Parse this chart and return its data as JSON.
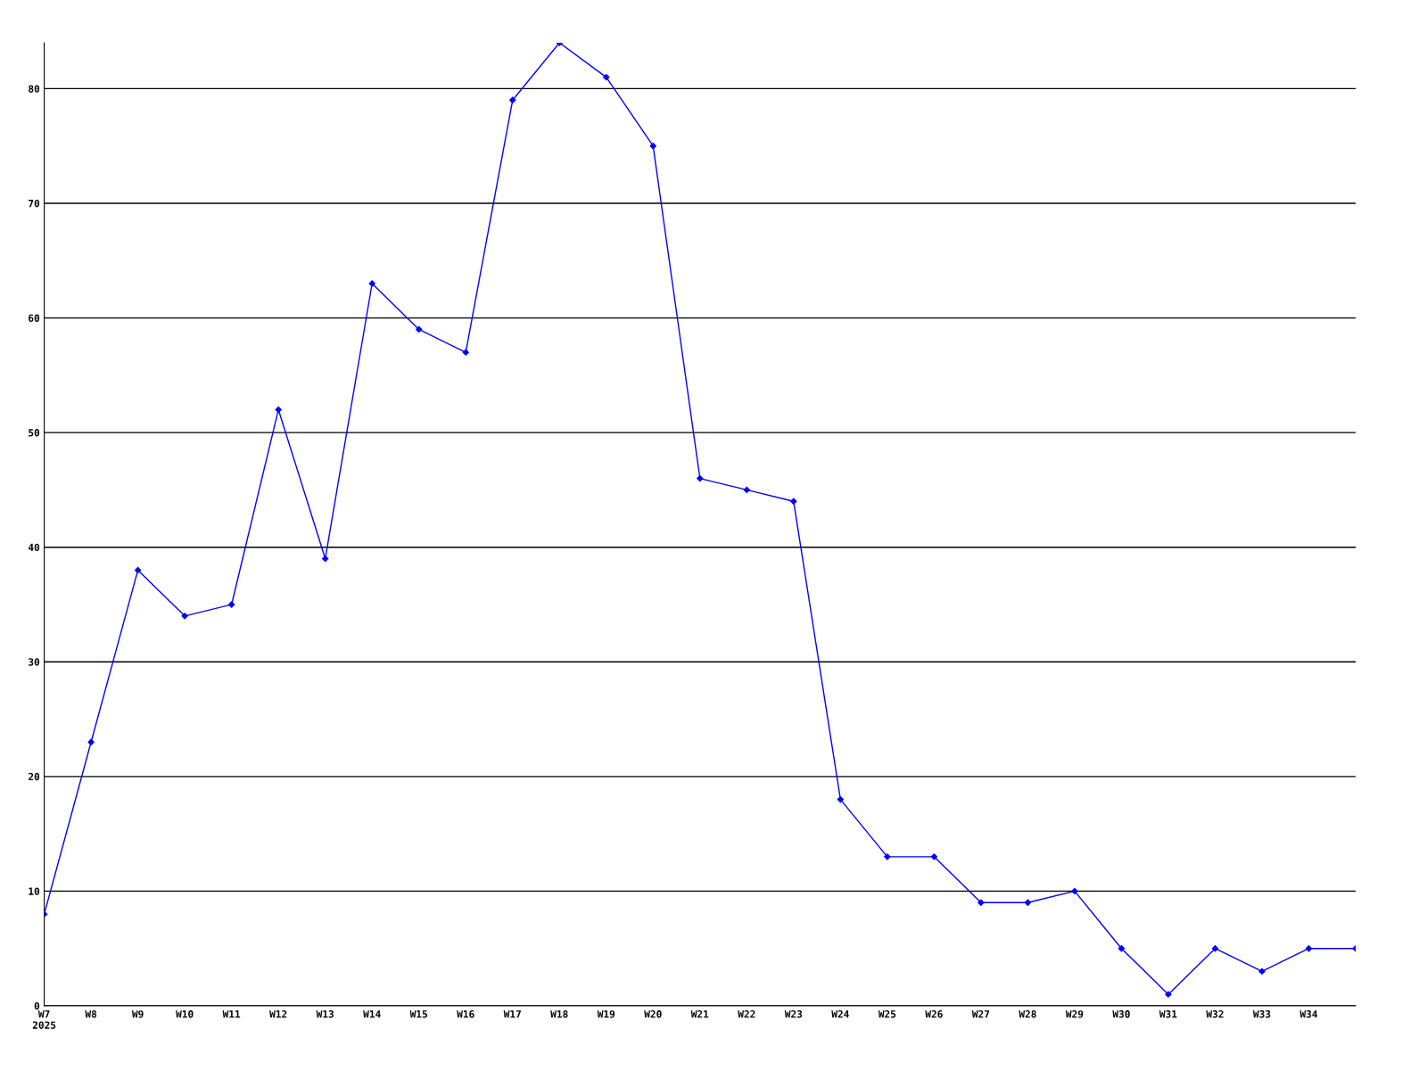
{
  "chart_data": {
    "type": "line",
    "categories": [
      "W7\n2025",
      "W8",
      "W9",
      "W10",
      "W11",
      "W12",
      "W13",
      "W14",
      "W15",
      "W16",
      "W17",
      "W18",
      "W19",
      "W20",
      "W21",
      "W22",
      "W23",
      "W24",
      "W25",
      "W26",
      "W27",
      "W28",
      "W29",
      "W30",
      "W31",
      "W32",
      "W33",
      "W34",
      null
    ],
    "series": [
      {
        "color": "#0000ff",
        "values": [
          8,
          23,
          38,
          34,
          35,
          52,
          39,
          63,
          59,
          57,
          79,
          84,
          81,
          75,
          46,
          45,
          44,
          18,
          13,
          13,
          9,
          9,
          10,
          5,
          1,
          5,
          3,
          5,
          5
        ]
      }
    ],
    "ylim": [
      0,
      84
    ],
    "yticks": [
      0,
      10,
      20,
      30,
      40,
      50,
      60,
      70,
      80
    ],
    "grid": "y",
    "marker": "diamond",
    "line_style": "solid"
  }
}
